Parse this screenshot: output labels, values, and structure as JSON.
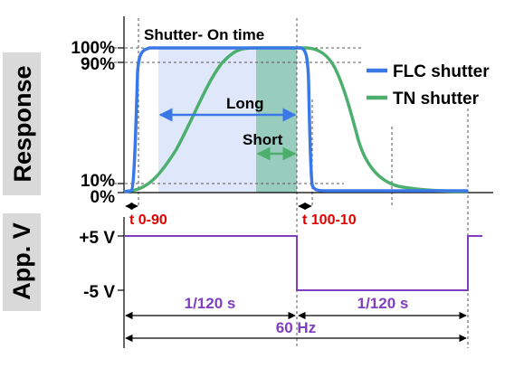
{
  "axis_labels": {
    "response": "Response",
    "app_v": "App. V"
  },
  "ticks": {
    "p100": "100%",
    "p90": "90%",
    "p10": "10%",
    "p0": "0%",
    "plus5": "+5 V",
    "minus5": "-5 V"
  },
  "annotations": {
    "shutter_on_time": "Shutter- On time",
    "long": "Long",
    "short": "Short",
    "t090": "t 0-90",
    "t10010": "t 100-10",
    "period1": "1/120 s",
    "period2": "1/120 s",
    "freq": "60 Hz"
  },
  "legend": [
    {
      "label": "FLC shutter",
      "color": "#3a78e8"
    },
    {
      "label": "TN shutter",
      "color": "#4caf6e"
    }
  ],
  "colors": {
    "flc": "#3a78e8",
    "tn": "#4caf6e",
    "voltage": "#7f3fbf",
    "timing_text": "#e00000",
    "period_text": "#7f3fbf",
    "long_region": "#dfe7fb",
    "short_region": "#7fbfa8",
    "axis_box": "#d9d9d9"
  }
}
